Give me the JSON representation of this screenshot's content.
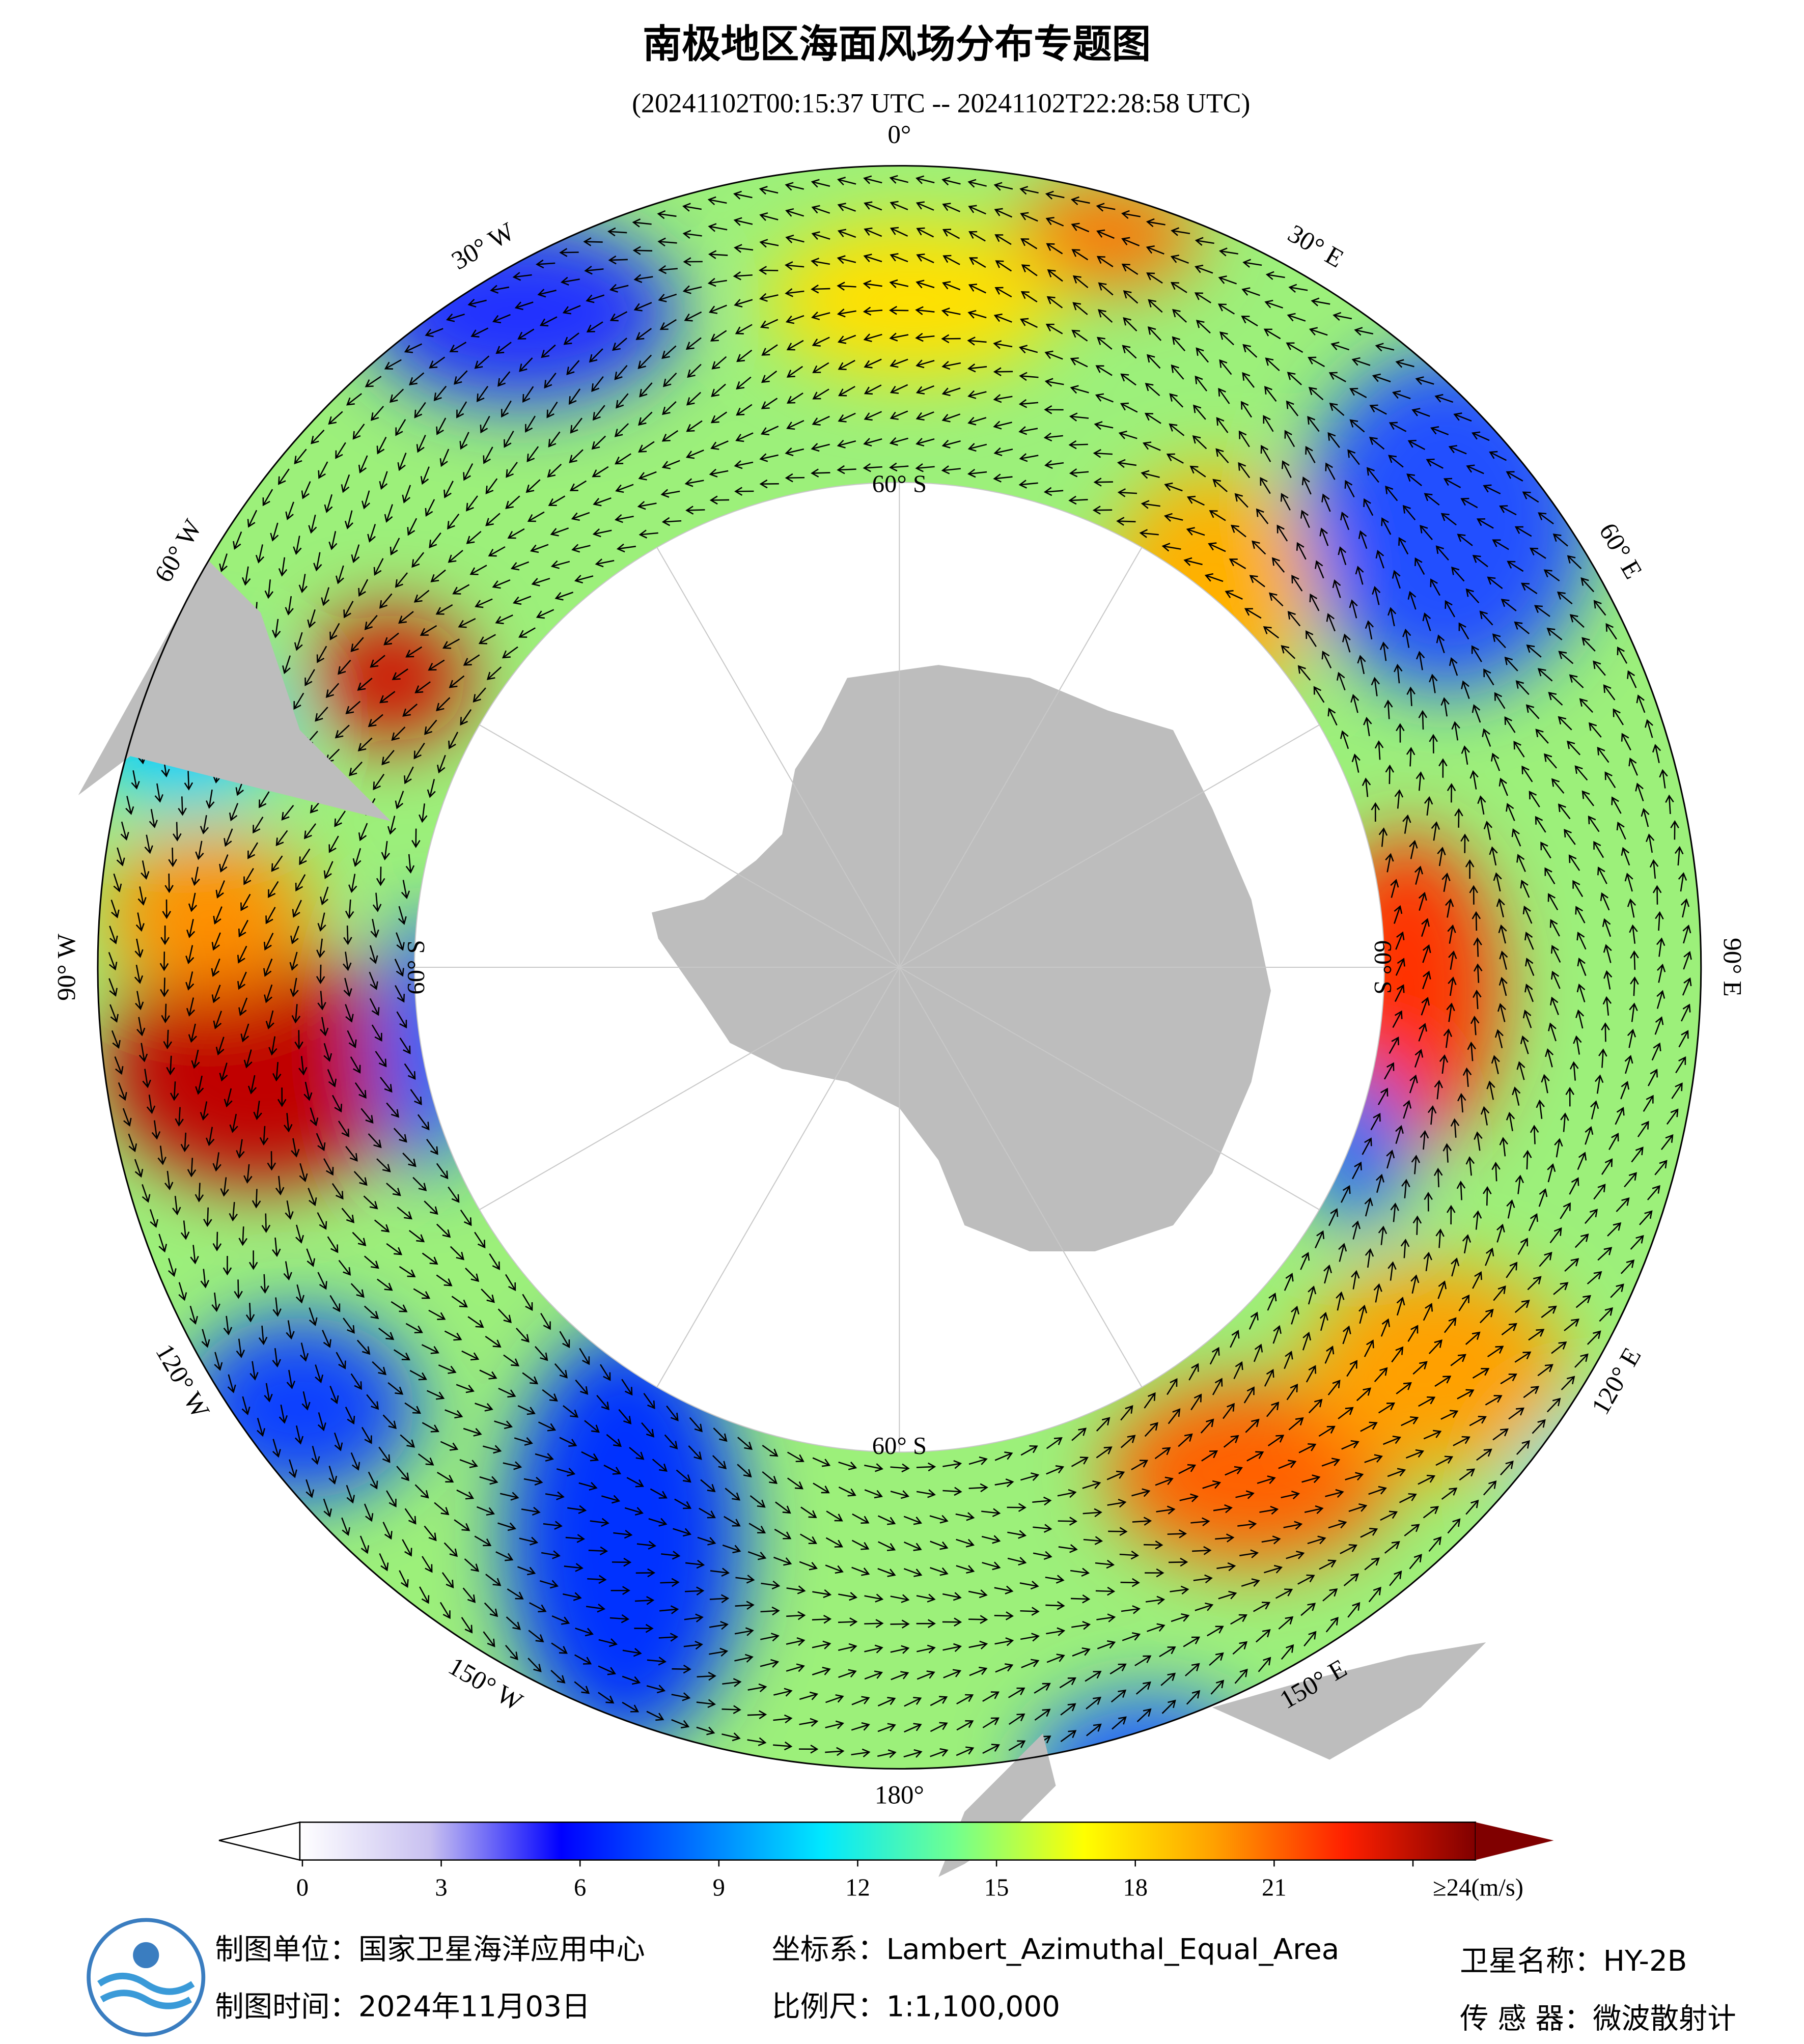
{
  "header": {
    "title": "南极地区海面风场分布专题图",
    "subtitle": "(20241102T00:15:37 UTC -- 20241102T22:28:58 UTC)"
  },
  "map": {
    "longitude_labels": [
      "0°",
      "30° E",
      "60° E",
      "90° E",
      "120° E",
      "150° E",
      "180°",
      "150° W",
      "120° W",
      "90° W",
      "60° W",
      "30° W"
    ],
    "latitude_labels": [
      "60° S",
      "60° S",
      "60° S",
      "60° S"
    ]
  },
  "colorbar": {
    "range": [
      0,
      24
    ],
    "ticks": [
      0,
      3,
      6,
      9,
      12,
      15,
      18,
      21,
      {
        "value": 24,
        "label": "≥24(m/s)"
      }
    ],
    "colors": [
      "#ffffff",
      "#c8c0f0",
      "#0000ff",
      "#0070ff",
      "#00e8ff",
      "#70ff90",
      "#ffff00",
      "#ffa000",
      "#ff2000",
      "#800000"
    ]
  },
  "footer": {
    "producer": "制图单位：国家卫星海洋应用中心",
    "date": "制图时间：2024年11月03日",
    "projection": "坐标系：Lambert_Azimuthal_Equal_Area",
    "scale": "比例尺：1:1,100,000",
    "satellite": "卫星名称：HY-2B",
    "sensor": "传 感 器：微波散射计"
  }
}
